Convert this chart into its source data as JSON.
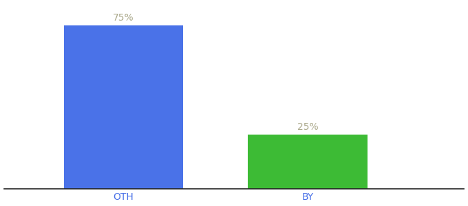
{
  "categories": [
    "OTH",
    "BY"
  ],
  "values": [
    75,
    25
  ],
  "bar_colors": [
    "#4a72e8",
    "#3dbb35"
  ],
  "label_texts": [
    "75%",
    "25%"
  ],
  "label_color": "#aaa88a",
  "ylim": [
    0,
    85
  ],
  "background_color": "#ffffff",
  "label_fontsize": 10,
  "tick_fontsize": 10,
  "tick_color": "#4a72e8",
  "spine_color": "#222222",
  "x_positions": [
    1,
    2
  ],
  "xlim": [
    0.35,
    2.85
  ],
  "bar_width": 0.65
}
